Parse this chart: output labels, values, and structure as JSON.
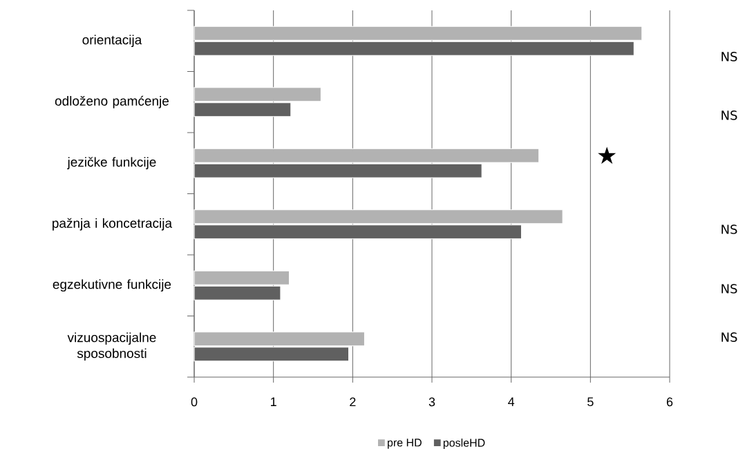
{
  "chart_data": {
    "type": "bar",
    "orientation": "horizontal",
    "categories": [
      "orientacija",
      "odloženo pamćenje",
      "jezičke funkcije",
      "pažnja i koncetracija",
      "egzekutivne funkcije",
      "vizuospacijalne sposobnosti"
    ],
    "series": [
      {
        "name": "pre HD",
        "color": "#b2b2b2",
        "values": [
          5.65,
          1.6,
          4.35,
          4.65,
          1.2,
          2.15
        ]
      },
      {
        "name": "posleHD",
        "color": "#606060",
        "values": [
          5.55,
          1.22,
          3.63,
          4.13,
          1.09,
          1.95
        ]
      }
    ],
    "xlim": [
      0,
      6
    ],
    "xticks": [
      0,
      1,
      2,
      3,
      4,
      5,
      6
    ],
    "grid": "x",
    "legend": "bottom",
    "annotations": [
      "NS",
      "NS",
      "★",
      "NS",
      "NS",
      "NS"
    ]
  }
}
